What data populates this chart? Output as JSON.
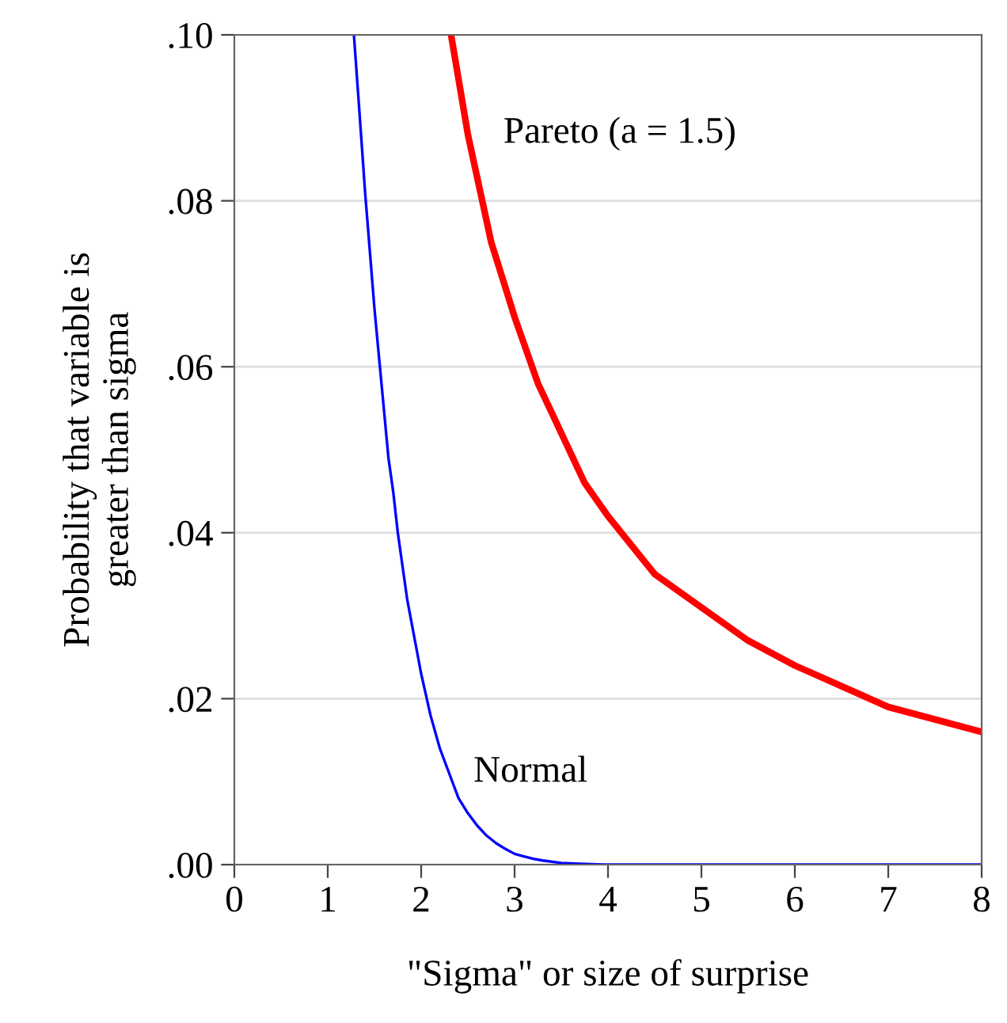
{
  "chart_data": {
    "type": "line",
    "xlabel": "\"Sigma\" or size of surprise",
    "ylabel": "Probability that variable is\ngreater than sigma",
    "xlim": [
      0,
      8
    ],
    "ylim": [
      0,
      0.1
    ],
    "xticks": [
      0,
      1,
      2,
      3,
      4,
      5,
      6,
      7,
      8
    ],
    "yticks": [
      {
        "value": 0,
        "label": ".00"
      },
      {
        "value": 0.02,
        "label": ".02"
      },
      {
        "value": 0.04,
        "label": ".04"
      },
      {
        "value": 0.06,
        "label": ".06"
      },
      {
        "value": 0.08,
        "label": ".08"
      },
      {
        "value": 0.1,
        "label": ".10"
      }
    ],
    "grid": "y",
    "legend": false,
    "marker": "none",
    "line_style": "solid",
    "series": [
      {
        "color": "#0000ff",
        "x": [
          1.28,
          1.35,
          1.4,
          1.45,
          1.5,
          1.55,
          1.6,
          1.65,
          1.7,
          1.75,
          1.8,
          1.85,
          1.9,
          1.95,
          2.0,
          2.1,
          2.2,
          2.3,
          2.4,
          2.5,
          2.6,
          2.7,
          2.8,
          2.9,
          3.0,
          3.1,
          3.2,
          3.3,
          3.5,
          3.7,
          4.0,
          5.0,
          6.0,
          7.0,
          8.0
        ],
        "values": [
          0.1,
          0.089,
          0.081,
          0.074,
          0.067,
          0.061,
          0.055,
          0.049,
          0.045,
          0.04,
          0.036,
          0.032,
          0.029,
          0.026,
          0.023,
          0.018,
          0.014,
          0.011,
          0.008,
          0.0062,
          0.0047,
          0.0035,
          0.0026,
          0.0019,
          0.0013,
          0.001,
          0.0007,
          0.0005,
          0.0002,
          0.0001,
          0,
          0,
          0,
          0,
          0
        ]
      },
      {
        "color": "#ff0000",
        "x": [
          2.32,
          2.5,
          2.75,
          3.0,
          3.25,
          3.5,
          3.75,
          4.0,
          4.5,
          5.0,
          5.5,
          6.0,
          6.5,
          7.0,
          7.5,
          8.0
        ],
        "values": [
          0.1,
          0.088,
          0.075,
          0.066,
          0.058,
          0.052,
          0.046,
          0.042,
          0.035,
          0.031,
          0.027,
          0.024,
          0.0215,
          0.019,
          0.0175,
          0.016
        ]
      }
    ],
    "annotations": [
      "Pareto (a = 1.5)",
      "Normal"
    ]
  }
}
